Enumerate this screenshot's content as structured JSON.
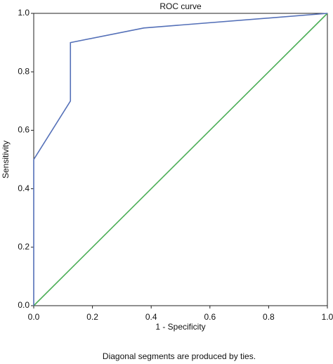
{
  "chart_data": {
    "type": "line",
    "title": "ROC curve",
    "xlabel": "1 - Specificity",
    "ylabel": "Sensitivity",
    "note": "Diagonal segments are produced by ties.",
    "series": [
      {
        "color": "#5470b8",
        "x": [
          0,
          0,
          0.125,
          0.125,
          0.375,
          1
        ],
        "values": [
          0,
          0.5,
          0.7,
          0.9,
          0.95,
          1
        ]
      },
      {
        "color": "#4cae57",
        "x": [
          0,
          1
        ],
        "values": [
          0,
          1
        ]
      }
    ],
    "xlim": [
      0,
      1
    ],
    "ylim": [
      0,
      1
    ],
    "xticks": [
      {
        "value": 0,
        "label": "0.0"
      },
      0.2,
      0.4,
      0.6,
      0.8,
      {
        "value": 1,
        "label": "1.0"
      }
    ],
    "yticks": [
      {
        "value": 0,
        "label": "0.0"
      },
      0.2,
      0.4,
      0.6,
      0.8,
      {
        "value": 1,
        "label": "1.0"
      }
    ]
  }
}
